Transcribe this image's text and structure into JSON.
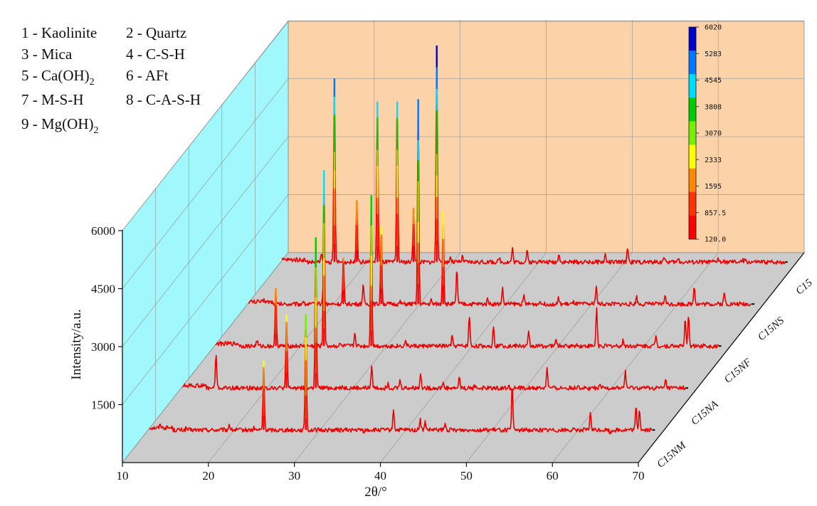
{
  "legend": [
    {
      "num": "1",
      "name": "Kaolinite"
    },
    {
      "num": "2",
      "name": "Quartz"
    },
    {
      "num": "3",
      "name": "Mica"
    },
    {
      "num": "4",
      "name": "C-S-H"
    },
    {
      "num": "5",
      "name": "Ca(OH)",
      "sub": "2"
    },
    {
      "num": "6",
      "name": "AFt"
    },
    {
      "num": "7",
      "name": "M-S-H"
    },
    {
      "num": "8",
      "name": "C-A-S-H"
    },
    {
      "num": "9",
      "name": "Mg(OH)",
      "sub": "2"
    }
  ],
  "colorbar": {
    "labels": [
      "6020",
      "5283",
      "4545",
      "3808",
      "3070",
      "2333",
      "1595",
      "857.5",
      "120.0"
    ],
    "colors": [
      "#0000cc",
      "#0077ff",
      "#00ddff",
      "#00cc00",
      "#77ee00",
      "#ffff00",
      "#ff8800",
      "#ff3300",
      "#ff0000"
    ]
  },
  "colors": {
    "back_wall": "#fcd3a9",
    "side_wall": "#a0f8fc",
    "floor": "#cccccc",
    "trace": "#ee0000"
  },
  "chart_data": {
    "type": "line",
    "subtype": "3d-waterfall",
    "xlabel": "2θ/°",
    "ylabel": "Intensity/a.u.",
    "xlim": [
      10,
      70
    ],
    "ylim": [
      0,
      6020
    ],
    "x_ticks": [
      "10",
      "20",
      "30",
      "40",
      "50",
      "60",
      "70"
    ],
    "y_ticks": [
      "1500",
      "3000",
      "4500",
      "6000"
    ],
    "series": [
      {
        "name": "C15NM",
        "baseline": 300,
        "peaks": [
          [
            12.5,
            400
          ],
          [
            15.5,
            350
          ],
          [
            20.5,
            450
          ],
          [
            23.4,
            350
          ],
          [
            24.5,
            2100
          ],
          [
            26.4,
            300
          ],
          [
            29.4,
            3300
          ],
          [
            32.5,
            300
          ],
          [
            36.2,
            250
          ],
          [
            39.6,
            850
          ],
          [
            42.7,
            600
          ],
          [
            43.3,
            500
          ],
          [
            45.6,
            450
          ],
          [
            48.8,
            350
          ],
          [
            50.1,
            300
          ],
          [
            53.4,
            1400
          ],
          [
            54.6,
            300
          ],
          [
            60.5,
            300
          ],
          [
            62.5,
            750
          ],
          [
            64.8,
            200
          ],
          [
            67.8,
            900
          ],
          [
            68.2,
            850
          ]
        ]
      },
      {
        "name": "C15NA",
        "baseline": 300,
        "peaks": [
          [
            12.2,
            350
          ],
          [
            15.1,
            1200
          ],
          [
            21.6,
            350
          ],
          [
            23.3,
            2200
          ],
          [
            24.8,
            350
          ],
          [
            26.7,
            4200
          ],
          [
            29.8,
            350
          ],
          [
            33.2,
            900
          ],
          [
            35.1,
            450
          ],
          [
            36.5,
            500
          ],
          [
            38.9,
            700
          ],
          [
            41.5,
            450
          ],
          [
            43.4,
            600
          ],
          [
            45.2,
            350
          ],
          [
            46.2,
            300
          ],
          [
            49.1,
            350
          ],
          [
            51.3,
            250
          ],
          [
            53.6,
            850
          ],
          [
            57.2,
            400
          ],
          [
            59.8,
            350
          ],
          [
            62.7,
            750
          ],
          [
            67.4,
            500
          ]
        ]
      },
      {
        "name": "C15NF",
        "baseline": 300,
        "peaks": [
          [
            16.0,
            450
          ],
          [
            18.2,
            1800
          ],
          [
            20.8,
            300
          ],
          [
            22.5,
            300
          ],
          [
            23.8,
            4850
          ],
          [
            25.7,
            350
          ],
          [
            27.4,
            650
          ],
          [
            29.3,
            4200
          ],
          [
            33.3,
            450
          ],
          [
            38.7,
            550
          ],
          [
            40.7,
            1100
          ],
          [
            43.5,
            850
          ],
          [
            44.5,
            400
          ],
          [
            47.6,
            650
          ],
          [
            50.8,
            500
          ],
          [
            53.1,
            350
          ],
          [
            55.5,
            1300
          ],
          [
            58.6,
            450
          ],
          [
            62.4,
            600
          ],
          [
            65.8,
            1000
          ],
          [
            66.2,
            1100
          ],
          [
            68.1,
            350
          ]
        ]
      },
      {
        "name": "C15NS",
        "baseline": 300,
        "peaks": [
          [
            13.0,
            350
          ],
          [
            17.5,
            400
          ],
          [
            19.9,
            1000
          ],
          [
            22.2,
            1500
          ],
          [
            24.5,
            800
          ],
          [
            26.6,
            2300
          ],
          [
            28.8,
            350
          ],
          [
            30.9,
            5600
          ],
          [
            32.4,
            400
          ],
          [
            33.8,
            2700
          ],
          [
            35.4,
            1200
          ],
          [
            39.0,
            450
          ],
          [
            40.7,
            700
          ],
          [
            43.2,
            500
          ],
          [
            45.1,
            400
          ],
          [
            47.2,
            450
          ],
          [
            49.0,
            350
          ],
          [
            51.6,
            800
          ],
          [
            54.3,
            300
          ],
          [
            56.3,
            500
          ],
          [
            59.6,
            550
          ],
          [
            63.0,
            800
          ],
          [
            66.5,
            600
          ]
        ]
      },
      {
        "name": "C15",
        "baseline": 300,
        "peaks": [
          [
            12.6,
            300
          ],
          [
            15.8,
            500
          ],
          [
            17.3,
            5050
          ],
          [
            19.9,
            1900
          ],
          [
            22.3,
            4450
          ],
          [
            24.6,
            4450
          ],
          [
            26.5,
            1700
          ],
          [
            29.2,
            5900
          ],
          [
            30.8,
            450
          ],
          [
            32.2,
            450
          ],
          [
            36.5,
            400
          ],
          [
            38.0,
            650
          ],
          [
            39.7,
            600
          ],
          [
            41.1,
            400
          ],
          [
            43.4,
            550
          ],
          [
            48.8,
            500
          ],
          [
            51.4,
            700
          ],
          [
            55.6,
            450
          ],
          [
            57.3,
            400
          ],
          [
            61.9,
            400
          ],
          [
            64.8,
            350
          ],
          [
            65.1,
            350
          ]
        ]
      }
    ],
    "grid": true
  }
}
